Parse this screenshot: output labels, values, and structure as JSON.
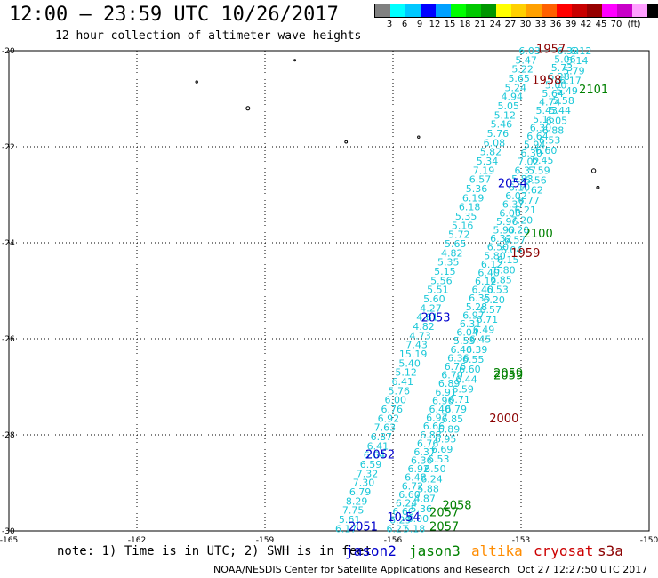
{
  "header": {
    "title": "12:00 — 23:59 UTC 10/26/2017",
    "subtitle": "12 hour collection of altimeter wave heights"
  },
  "legend": {
    "colors": [
      "#808080",
      "#00ffff",
      "#00c8ff",
      "#0000ff",
      "#00a0ff",
      "#00ff00",
      "#00c800",
      "#009600",
      "#ffff00",
      "#ffd000",
      "#ffa000",
      "#ff6000",
      "#ff0000",
      "#c80000",
      "#960000",
      "#ff00ff",
      "#c800c8",
      "#ffa0ff",
      "#000000"
    ],
    "labels": [
      "3",
      "6",
      "9",
      "12",
      "15",
      "18",
      "21",
      "24",
      "27",
      "30",
      "33",
      "36",
      "39",
      "42",
      "45",
      "70",
      "(ft)"
    ]
  },
  "chart_data": {
    "type": "scatter",
    "xlim": [
      -165,
      -150
    ],
    "ylim": [
      -30,
      -20
    ],
    "x_ticks": [
      "-165",
      "-162",
      "-159",
      "-156",
      "-153",
      "-150"
    ],
    "y_ticks": [
      "-20",
      "-22",
      "-24",
      "-26",
      "-28",
      "-30"
    ],
    "grid": true,
    "pass_labels": [
      {
        "text": "1957",
        "lon": -152.3,
        "lat": -19.95,
        "color": "#8b0000"
      },
      {
        "text": "1958",
        "lon": -152.4,
        "lat": -20.6,
        "color": "#8b0000"
      },
      {
        "text": "2101",
        "lon": -151.3,
        "lat": -20.8,
        "color": "#008000"
      },
      {
        "text": "2054",
        "lon": -153.2,
        "lat": -22.75,
        "color": "#0000cc"
      },
      {
        "text": "2100",
        "lon": -152.6,
        "lat": -23.8,
        "color": "#008000"
      },
      {
        "text": "1959",
        "lon": -152.9,
        "lat": -24.2,
        "color": "#8b0000"
      },
      {
        "text": "2053",
        "lon": -155.0,
        "lat": -25.55,
        "color": "#0000cc"
      },
      {
        "text": "2059",
        "lon": -153.3,
        "lat": -26.7,
        "color": "#008000"
      },
      {
        "text": "2059",
        "lon": -153.3,
        "lat": -26.75,
        "color": "#008000"
      },
      {
        "text": "2000",
        "lon": -153.4,
        "lat": -27.65,
        "color": "#8b0000"
      },
      {
        "text": "2052",
        "lon": -156.3,
        "lat": -28.4,
        "color": "#0000cc"
      },
      {
        "text": "2058",
        "lon": -154.5,
        "lat": -29.45,
        "color": "#008000"
      },
      {
        "text": "2057",
        "lon": -154.8,
        "lat": -29.6,
        "color": "#008000"
      },
      {
        "text": "2057",
        "lon": -154.8,
        "lat": -29.9,
        "color": "#008000"
      },
      {
        "text": "10.54",
        "lon": -155.75,
        "lat": -29.7,
        "color": "#0000cc"
      },
      {
        "text": "2051",
        "lon": -156.7,
        "lat": -29.9,
        "color": "#0000cc"
      }
    ],
    "tracks": [
      {
        "lon_start": -157.1,
        "lat_start": -29.95,
        "lon_end": -152.8,
        "lat_end": -20.0,
        "values": [
          "6.17",
          "5.61",
          "7.75",
          "8.29",
          "6.79",
          "7.30",
          "7.32",
          "6.59",
          "6.64",
          "6.41",
          "6.87",
          "7.63",
          "6.92",
          "6.76",
          "6.00",
          "5.76",
          "6.41",
          "5.12",
          "5.40",
          "15.19",
          "7.43",
          "4.73",
          "4.82",
          "4.81",
          "4.27",
          "5.60",
          "5.51",
          "5.56",
          "5.15",
          "5.35",
          "4.82",
          "5.65",
          "5.72",
          "5.16",
          "5.35",
          "6.18",
          "6.19",
          "5.36",
          "6.57",
          "7.19",
          "5.34",
          "5.82",
          "6.08",
          "5.76",
          "5.46",
          "5.12",
          "5.05",
          "4.94",
          "5.24",
          "5.65",
          "5.22",
          "5.47",
          "6.03"
        ]
      },
      {
        "lon_start": -155.9,
        "lat_start": -29.95,
        "lon_end": -151.9,
        "lat_end": -20.0,
        "values": [
          "6.27",
          "6.29",
          "6.60",
          "6.24",
          "6.60",
          "6.72",
          "6.48",
          "6.92",
          "6.36",
          "6.37",
          "6.76",
          "6.88",
          "6.66",
          "6.97",
          "6.40",
          "6.96",
          "6.91",
          "6.89",
          "6.70",
          "6.76",
          "6.36",
          "6.40",
          "5.53",
          "6.04",
          "6.31",
          "6.97",
          "5.28",
          "6.35",
          "6.40",
          "6.12",
          "6.40",
          "6.12",
          "5.80",
          "6.50",
          "6.32",
          "5.90",
          "5.96",
          "6.00",
          "6.37",
          "6.02",
          "6.10",
          "5.83",
          "6.37",
          "7.02",
          "6.30",
          "5.94",
          "6.64",
          "6.30",
          "5.16",
          "5.43",
          "4.74",
          "5.64",
          "5.00",
          "6.28",
          "5.73",
          "5.06",
          "6.39"
        ]
      },
      {
        "lon_start": -155.5,
        "lat_start": -29.95,
        "lon_end": -151.6,
        "lat_end": -20.0,
        "values": [
          "5.18",
          "8.00",
          "5.36",
          "4.87",
          "5.88",
          "6.24",
          "6.50",
          "6.53",
          "6.69",
          "6.95",
          "6.89",
          "6.85",
          "6.79",
          "6.71",
          "6.59",
          "6.44",
          "6.60",
          "6.55",
          "6.39",
          "6.45",
          "6.49",
          "6.71",
          "6.57",
          "6.20",
          "6.53",
          "6.85",
          "6.80",
          "6.15",
          "6.04",
          "6.57",
          "6.20",
          "7.20",
          "6.21",
          "6.77",
          "5.62",
          "5.56",
          "5.59",
          "6.45",
          "6.60",
          "6.53",
          "6.88",
          "6.05",
          "5.44",
          "5.58",
          "5.49",
          "6.17",
          "5.79",
          "5.14",
          "6.12"
        ]
      }
    ]
  },
  "footer": {
    "note": "note: 1) Time is in UTC; 2) SWH is in feet",
    "satellites": [
      {
        "name": "jason2",
        "color": "#0000cc"
      },
      {
        "name": "jason3",
        "color": "#008000"
      },
      {
        "name": "altika",
        "color": "#ff8c00"
      },
      {
        "name": "cryosat",
        "color": "#cc0000"
      },
      {
        "name": "s3a",
        "color": "#8b0000"
      }
    ],
    "credit": "NOAA/NESDIS Center for Satellite Applications and Research",
    "timestamp": "Oct 27 12:27:50 UTC 2017"
  }
}
